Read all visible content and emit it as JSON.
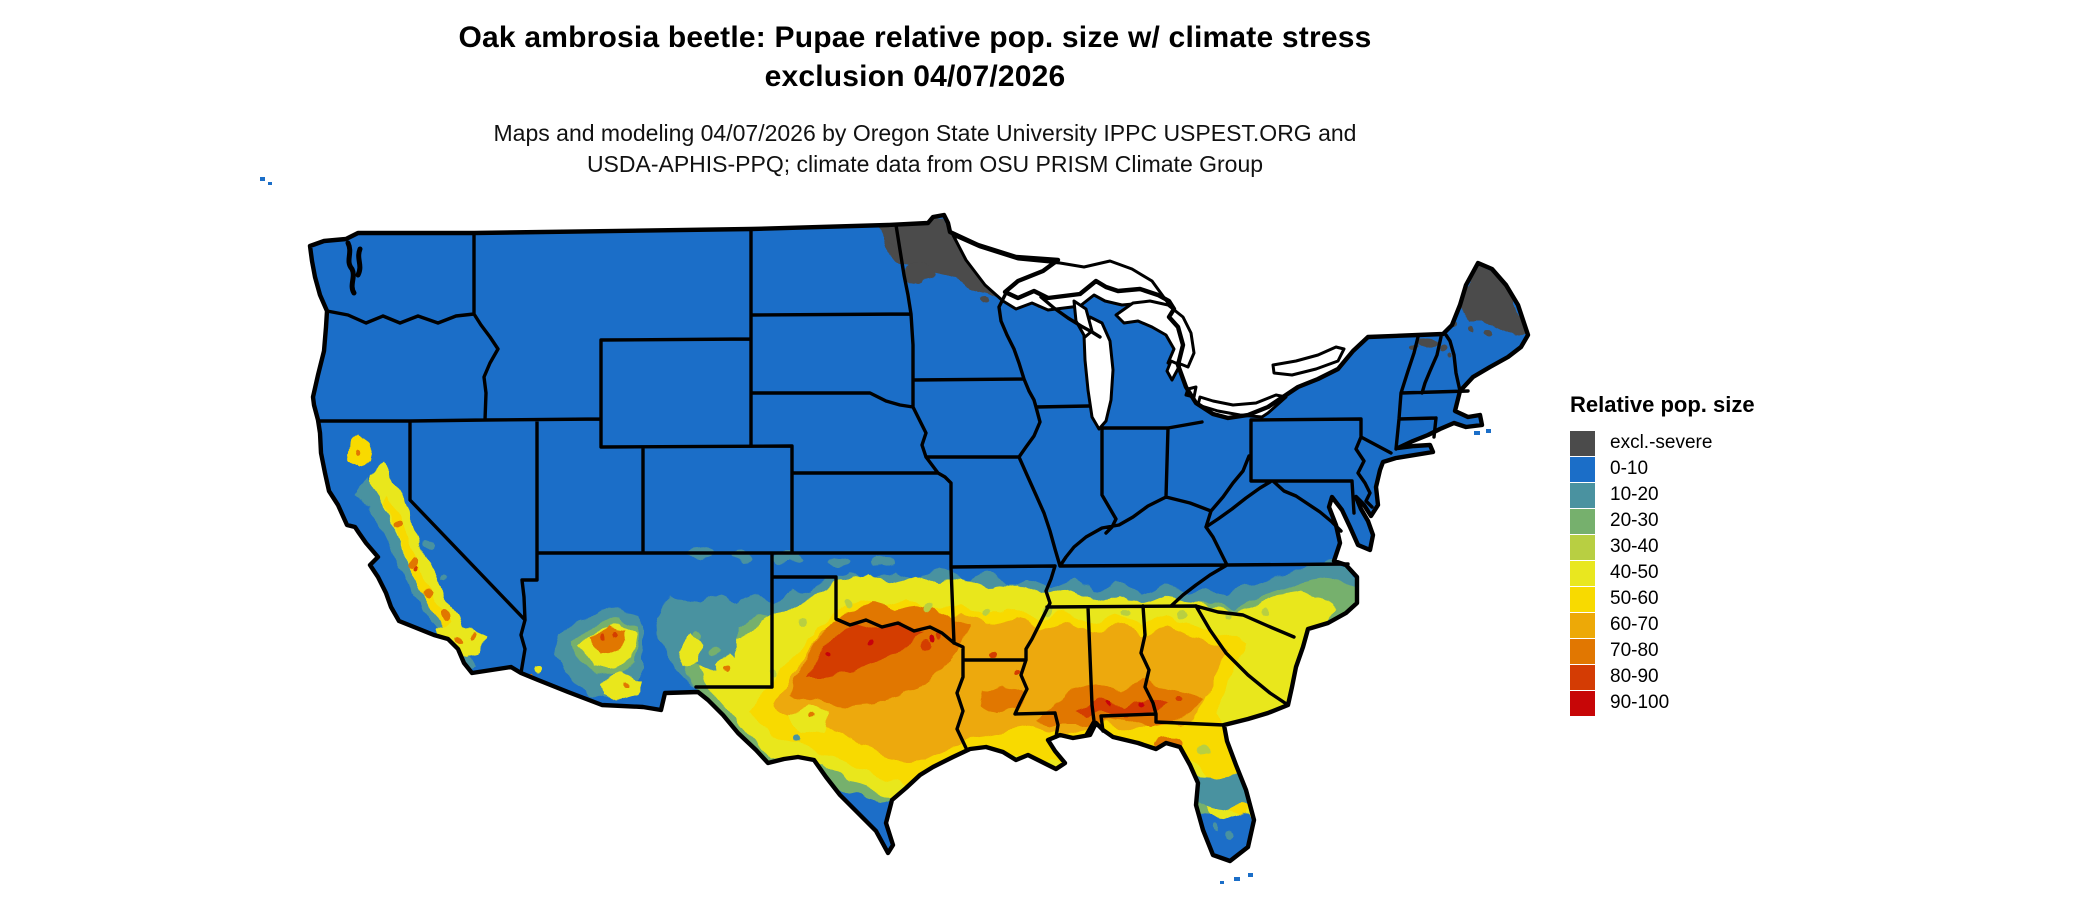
{
  "title": {
    "line1": "Oak ambrosia beetle: Pupae relative pop. size w/ climate stress",
    "line2": "exclusion 04/07/2026"
  },
  "subtitle": {
    "line1": "Maps and modeling 04/07/2026 by Oregon State University IPPC USPEST.ORG and",
    "line2": "USDA-APHIS-PPQ; climate data from OSU PRISM Climate Group"
  },
  "legend": {
    "title": "Relative pop. size",
    "items": [
      {
        "label": "excl.-severe",
        "key": "excl",
        "color": "#4b4b4b"
      },
      {
        "label": "0-10",
        "key": "b0",
        "color": "#1b6ec8"
      },
      {
        "label": "10-20",
        "key": "b10",
        "color": "#4a92a0"
      },
      {
        "label": "20-30",
        "key": "b20",
        "color": "#76b06d"
      },
      {
        "label": "30-40",
        "key": "b30",
        "color": "#b8cf42"
      },
      {
        "label": "40-50",
        "key": "b40",
        "color": "#e9e71f"
      },
      {
        "label": "50-60",
        "key": "b50",
        "color": "#f8da00"
      },
      {
        "label": "60-70",
        "key": "b60",
        "color": "#eda907"
      },
      {
        "label": "70-80",
        "key": "b70",
        "color": "#e17701"
      },
      {
        "label": "80-90",
        "key": "b80",
        "color": "#d43c04"
      },
      {
        "label": "90-100",
        "key": "b90",
        "color": "#c70607"
      }
    ]
  },
  "map": {
    "region_label": "Continental United States",
    "water_color": "#ffffff",
    "border_color": "#000000"
  }
}
